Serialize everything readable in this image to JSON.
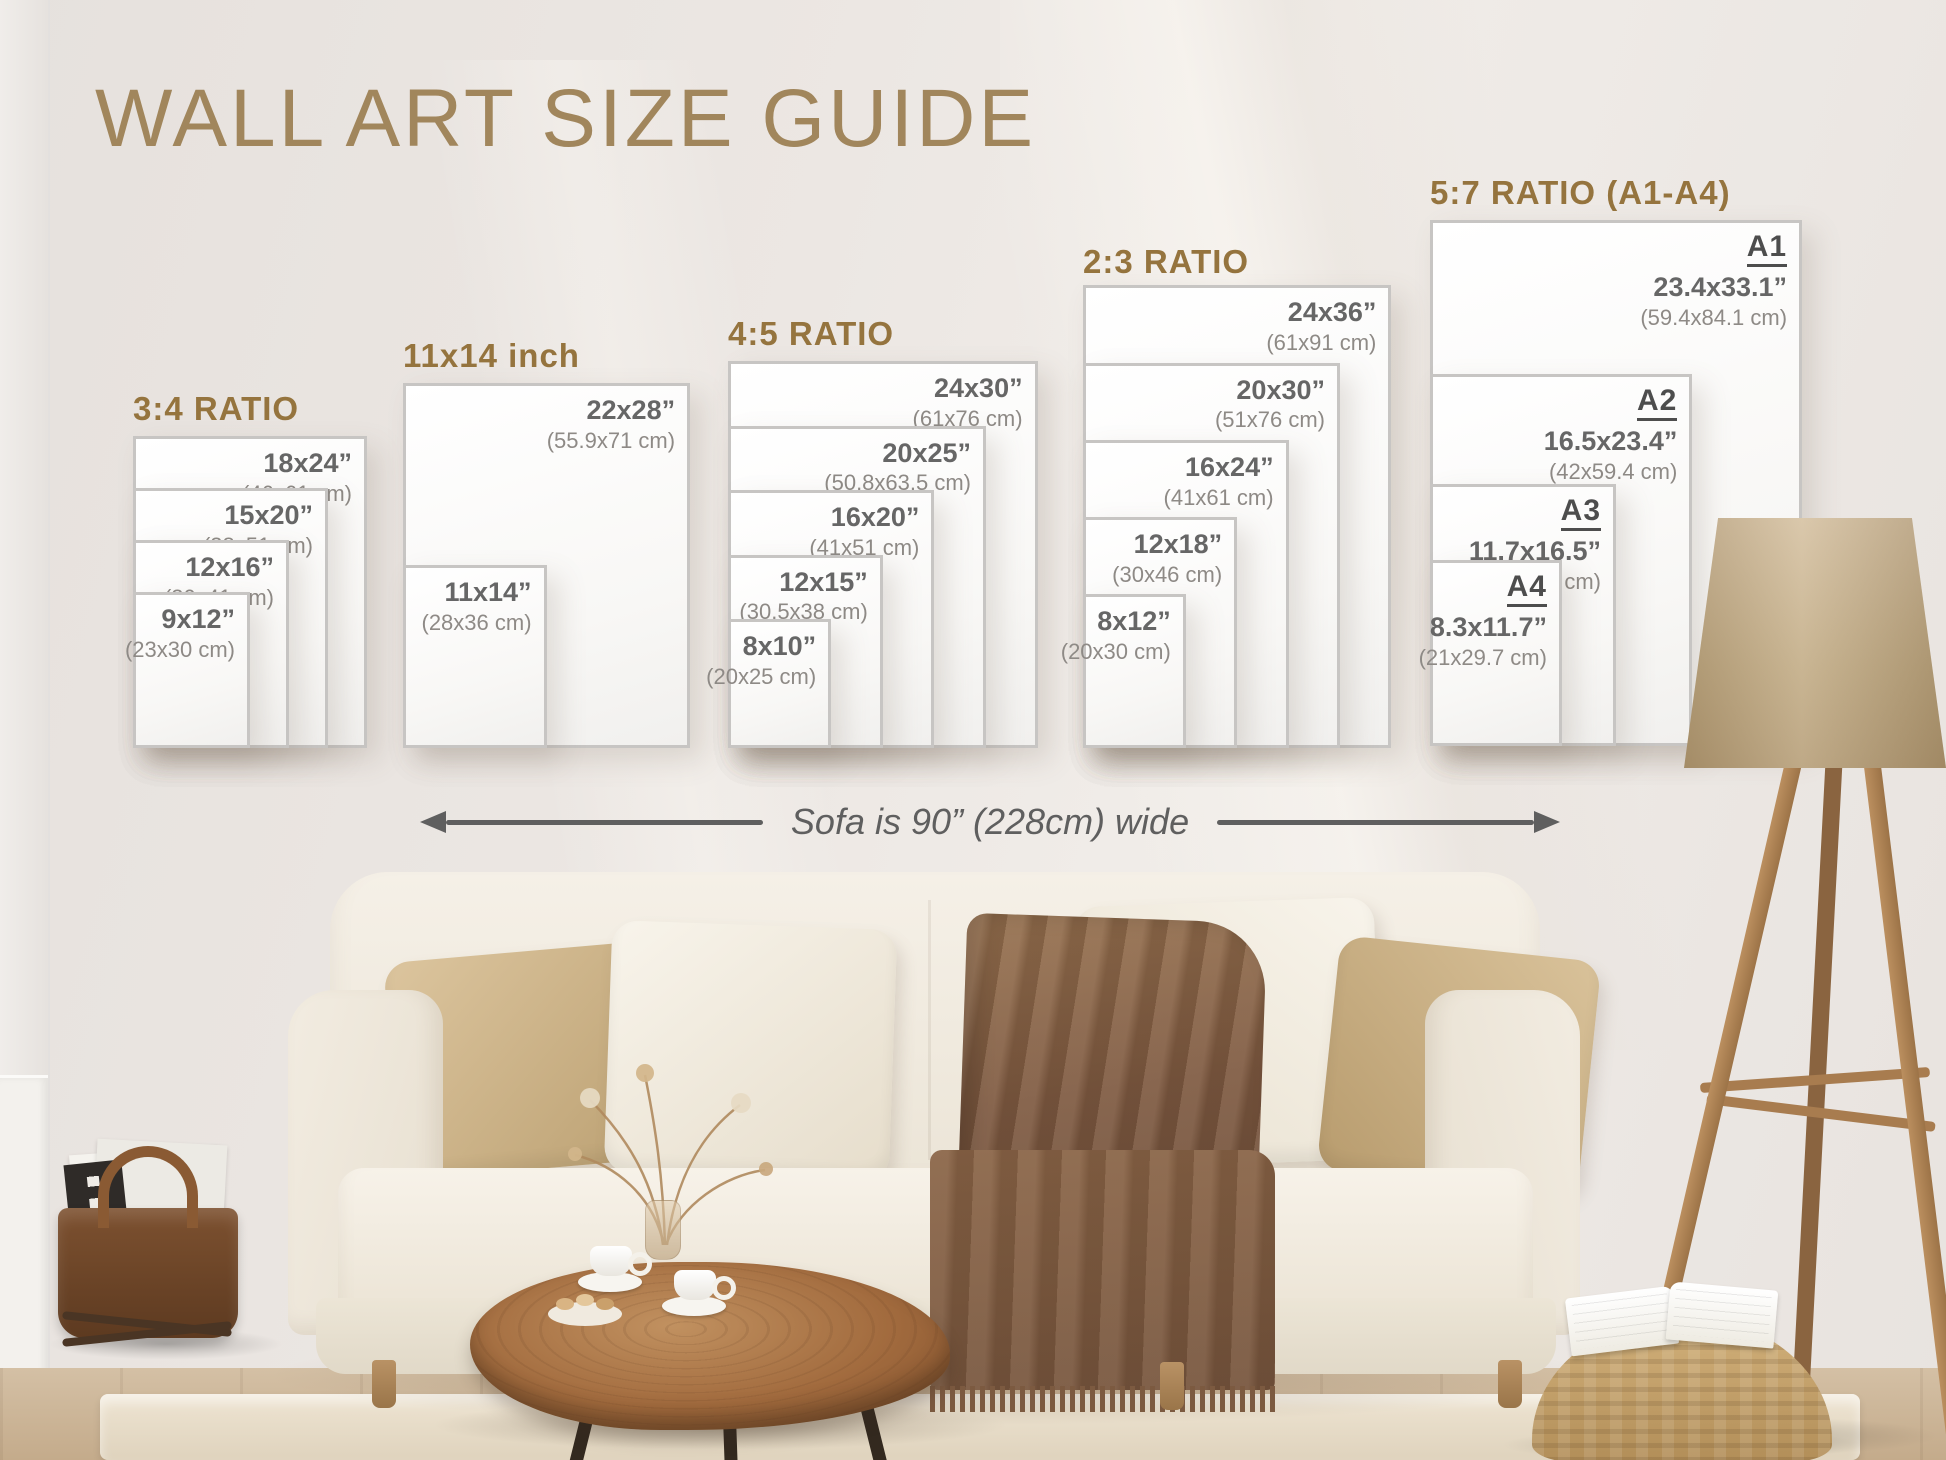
{
  "page": {
    "title": "WALL ART SIZE GUIDE",
    "sofa_width_note": "Sofa is 90” (228cm) wide"
  },
  "colors": {
    "main_title": "#a1865c",
    "group_title": "#95743e",
    "size_text": "#666666",
    "cm_text": "#8e8a86",
    "format_text": "#4d4d4d",
    "sheet_border": "#c7c5c3",
    "arrow": "#5f5f5f"
  },
  "size_groups": [
    {
      "title": "3:4 RATIO",
      "sizes": [
        {
          "inches": "18x24”",
          "cm": "(46x61 cm)",
          "w_in": 18,
          "h_in": 24
        },
        {
          "inches": "15x20”",
          "cm": "(38x51 cm)",
          "w_in": 15,
          "h_in": 20
        },
        {
          "inches": "12x16”",
          "cm": "(30x41 cm)",
          "w_in": 12,
          "h_in": 16
        },
        {
          "inches": "9x12”",
          "cm": "(23x30 cm)",
          "w_in": 9,
          "h_in": 12
        }
      ]
    },
    {
      "title": "11x14 inch",
      "sizes": [
        {
          "inches": "22x28”",
          "cm": "(55.9x71 cm)",
          "w_in": 22,
          "h_in": 28
        },
        {
          "inches": "11x14”",
          "cm": "(28x36 cm)",
          "w_in": 11,
          "h_in": 14
        }
      ]
    },
    {
      "title": "4:5 RATIO",
      "sizes": [
        {
          "inches": "24x30”",
          "cm": "(61x76 cm)",
          "w_in": 24,
          "h_in": 30
        },
        {
          "inches": "20x25”",
          "cm": "(50.8x63.5 cm)",
          "w_in": 20,
          "h_in": 25
        },
        {
          "inches": "16x20”",
          "cm": "(41x51 cm)",
          "w_in": 16,
          "h_in": 20
        },
        {
          "inches": "12x15”",
          "cm": "(30.5x38 cm)",
          "w_in": 12,
          "h_in": 15
        },
        {
          "inches": "8x10”",
          "cm": "(20x25 cm)",
          "w_in": 8,
          "h_in": 10
        }
      ]
    },
    {
      "title": "2:3 RATIO",
      "sizes": [
        {
          "inches": "24x36”",
          "cm": "(61x91 cm)",
          "w_in": 24,
          "h_in": 36
        },
        {
          "inches": "20x30”",
          "cm": "(51x76 cm)",
          "w_in": 20,
          "h_in": 30
        },
        {
          "inches": "16x24”",
          "cm": "(41x61 cm)",
          "w_in": 16,
          "h_in": 24
        },
        {
          "inches": "12x18”",
          "cm": "(30x46 cm)",
          "w_in": 12,
          "h_in": 18
        },
        {
          "inches": "8x12”",
          "cm": "(20x30 cm)",
          "w_in": 8,
          "h_in": 12
        }
      ]
    },
    {
      "title": "5:7 RATIO (A1-A4)",
      "sizes": [
        {
          "name": "A1",
          "inches": "23.4x33.1”",
          "cm": "(59.4x84.1 cm)",
          "w_in": 23.4,
          "h_in": 33.1
        },
        {
          "name": "A2",
          "inches": "16.5x23.4”",
          "cm": "(42x59.4 cm)",
          "w_in": 16.5,
          "h_in": 23.4
        },
        {
          "name": "A3",
          "inches": "11.7x16.5”",
          "cm": "(29.7x42 cm)",
          "w_in": 11.7,
          "h_in": 16.5
        },
        {
          "name": "A4",
          "inches": "8.3x11.7”",
          "cm": "(21x29.7 cm)",
          "w_in": 8.3,
          "h_in": 11.7
        }
      ]
    }
  ]
}
